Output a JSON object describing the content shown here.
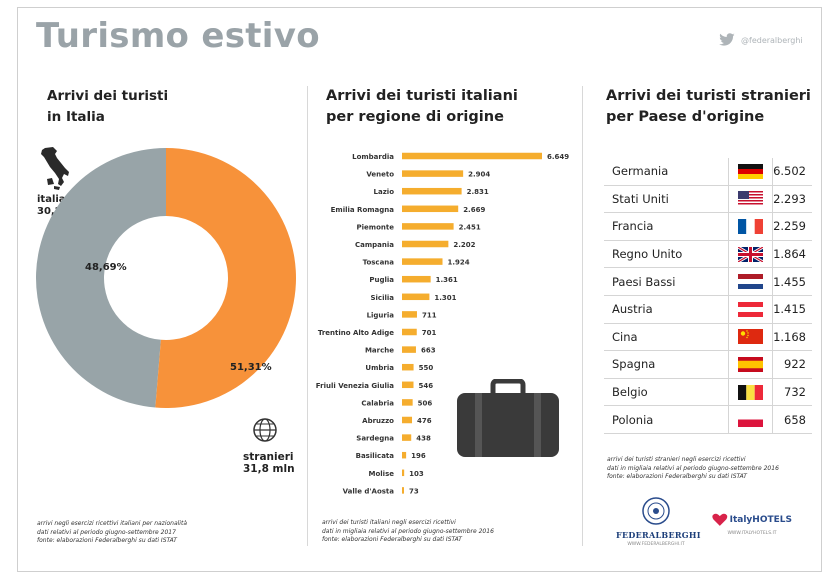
{
  "title": "Turismo estivo",
  "twitter_handle": "@federalberghi",
  "col1": {
    "heading_line1": "Arrivi dei turisti",
    "heading_line2": "in Italia",
    "italiani_label": "italiani",
    "italiani_value": "30,2 mln",
    "stranieri_label": "stranieri",
    "stranieri_value": "31,8 mln",
    "pct_italiani": "48,69%",
    "pct_stranieri": "51,31%",
    "footnote": [
      "arrivi negli esercizi ricettivi italiani per nazionalità",
      "dati relativi al periodo giugno-settembre 2017",
      "fonte: elaborazioni Federalberghi su dati ISTAT"
    ]
  },
  "col2": {
    "heading_line1": "Arrivi dei turisti italiani",
    "heading_line2": "per regione di origine",
    "footnote": [
      "arrivi dei turisti italiani negli esercizi ricettivi",
      "dati in migliaia relativi al periodo giugno-settembre 2016",
      "fonte: elaborazioni Federalberghi su dati ISTAT"
    ]
  },
  "col3": {
    "heading_line1": "Arrivi dei turisti stranieri",
    "heading_line2": "per Paese d'origine",
    "footnote": [
      "arrivi dei turisti stranieri negli esercizi ricettivi",
      "dati in migliaia relativi al periodo giugno-settembre 2016",
      "fonte: elaborazioni Federalberghi su dati ISTAT"
    ],
    "logo1_name": "FEDERALBERGHI",
    "logo1_url": "WWW.FEDERALBERGHI.IT",
    "logo2_name": "ItalyHOTELS",
    "logo2_url": "WWW.ITALYHOTELS.IT"
  },
  "colors": {
    "orange": "#f7923a",
    "grey": "#98a4a8",
    "bar": "#f5ad2e"
  },
  "chart_data": [
    {
      "type": "pie",
      "categories": [
        "italiani",
        "stranieri"
      ],
      "values": [
        48.69,
        51.31
      ],
      "labels": [
        "48,69%",
        "51,31%"
      ],
      "colors": [
        "#98a4a8",
        "#f7923a"
      ]
    },
    {
      "type": "bar",
      "orientation": "horizontal",
      "categories": [
        "Lombardia",
        "Veneto",
        "Lazio",
        "Emilia Romagna",
        "Piemonte",
        "Campania",
        "Toscana",
        "Puglia",
        "Sicilia",
        "Liguria",
        "Trentino Alto Adige",
        "Marche",
        "Umbria",
        "Friuli Venezia Giulia",
        "Calabria",
        "Abruzzo",
        "Sardegna",
        "Basilicata",
        "Molise",
        "Valle d'Aosta"
      ],
      "values": [
        6649,
        2904,
        2831,
        2669,
        2451,
        2202,
        1924,
        1361,
        1301,
        711,
        701,
        663,
        550,
        546,
        506,
        476,
        438,
        196,
        103,
        73
      ],
      "labels": [
        "6.649",
        "2.904",
        "2.831",
        "2.669",
        "2.451",
        "2.202",
        "1.924",
        "1.361",
        "1.301",
        "711",
        "701",
        "663",
        "550",
        "546",
        "506",
        "476",
        "438",
        "196",
        "103",
        "73"
      ],
      "color": "#f5ad2e"
    },
    {
      "type": "table",
      "rows": [
        {
          "country": "Germania",
          "value": "6.502",
          "flag": "germany-flag-icon"
        },
        {
          "country": "Stati Uniti",
          "value": "2.293",
          "flag": "usa-flag-icon"
        },
        {
          "country": "Francia",
          "value": "2.259",
          "flag": "france-flag-icon"
        },
        {
          "country": "Regno Unito",
          "value": "1.864",
          "flag": "uk-flag-icon"
        },
        {
          "country": "Paesi Bassi",
          "value": "1.455",
          "flag": "netherlands-flag-icon"
        },
        {
          "country": "Austria",
          "value": "1.415",
          "flag": "austria-flag-icon"
        },
        {
          "country": "Cina",
          "value": "1.168",
          "flag": "china-flag-icon"
        },
        {
          "country": "Spagna",
          "value": "922",
          "flag": "spain-flag-icon"
        },
        {
          "country": "Belgio",
          "value": "732",
          "flag": "belgium-flag-icon"
        },
        {
          "country": "Polonia",
          "value": "658",
          "flag": "poland-flag-icon"
        }
      ]
    }
  ]
}
